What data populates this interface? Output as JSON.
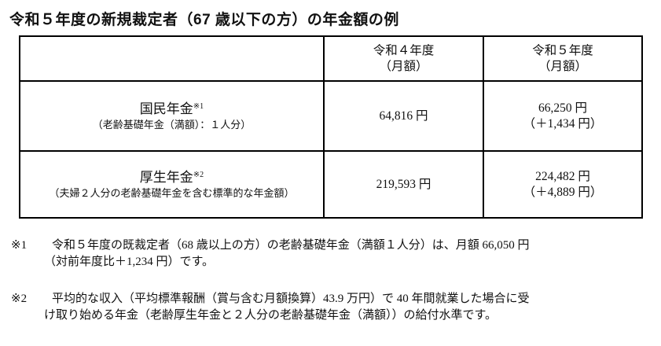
{
  "title": "令和５年度の新規裁定者（67 歳以下の方）の年金額の例",
  "table": {
    "headers": [
      {
        "line1": "",
        "line2": ""
      },
      {
        "line1": "令和４年度",
        "line2": "（月額）"
      },
      {
        "line1": "令和５年度",
        "line2": "（月額）"
      }
    ],
    "rows": [
      {
        "label": "国民年金",
        "note_mark": "※1",
        "sublabel": "（老齢基礎年金（満額）：１人分）",
        "fy4": "64,816 円",
        "fy5": "66,250 円",
        "fy5_diff": "（＋1,434 円）"
      },
      {
        "label": "厚生年金",
        "note_mark": "※2",
        "sublabel": "（夫婦２人分の老齢基礎年金を含む標準的な年金額）",
        "fy4": "219,593 円",
        "fy5": "224,482 円",
        "fy5_diff": "（＋4,889 円）"
      }
    ]
  },
  "notes": [
    {
      "mark": "※1",
      "line1": "令和５年度の既裁定者（68 歳以上の方）の老齢基礎年金（満額１人分）は、月額 66,050 円",
      "line2": "（対前年度比＋1,234 円）です。"
    },
    {
      "mark": "※2",
      "line1": "平均的な収入（平均標準報酬（賞与含む月額換算）43.9 万円）で 40 年間就業した場合に受",
      "line2": "け取り始める年金（老齢厚生年金と２人分の老齢基礎年金（満額））の給付水準です。"
    }
  ]
}
